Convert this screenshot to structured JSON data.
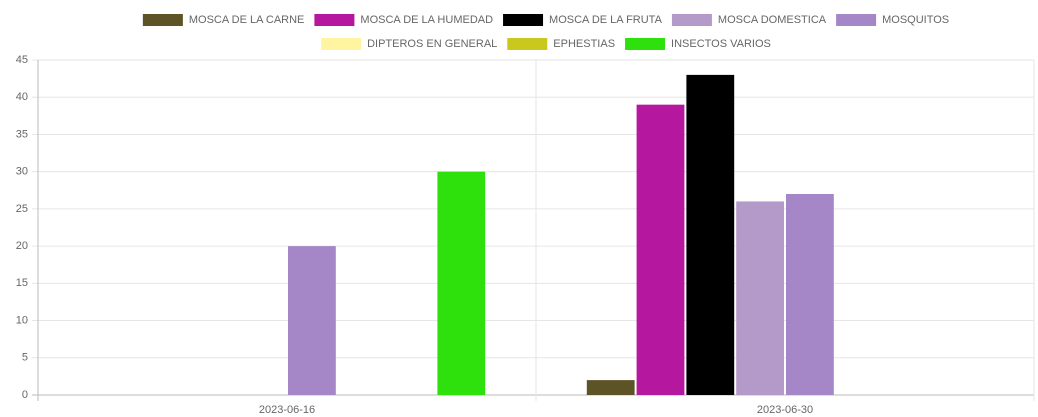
{
  "chart_data": {
    "type": "bar",
    "categories": [
      "2023-06-16",
      "2023-06-30"
    ],
    "series": [
      {
        "name": "MOSCA DE LA CARNE",
        "color": "#5c5326",
        "values": [
          0,
          2
        ]
      },
      {
        "name": "MOSCA DE LA HUMEDAD",
        "color": "#b5179e",
        "values": [
          0,
          39
        ]
      },
      {
        "name": "MOSCA DE LA FRUTA",
        "color": "#000000",
        "values": [
          0,
          43
        ]
      },
      {
        "name": "MOSCA DOMESTICA",
        "color": "#b39ac8",
        "values": [
          0,
          26
        ]
      },
      {
        "name": "MOSQUITOS",
        "color": "#a586c6",
        "values": [
          20,
          27
        ]
      },
      {
        "name": "DIPTEROS EN GENERAL",
        "color": "#fff5a0",
        "values": [
          0,
          0
        ]
      },
      {
        "name": "EPHESTIAS",
        "color": "#c8c81e",
        "values": [
          0,
          0
        ]
      },
      {
        "name": "INSECTOS VARIOS",
        "color": "#2ee00c",
        "values": [
          30,
          0
        ]
      }
    ],
    "ylim": [
      0,
      45
    ],
    "yticks": [
      0,
      5,
      10,
      15,
      20,
      25,
      30,
      35,
      40,
      45
    ],
    "grid": true,
    "legend": "top"
  }
}
